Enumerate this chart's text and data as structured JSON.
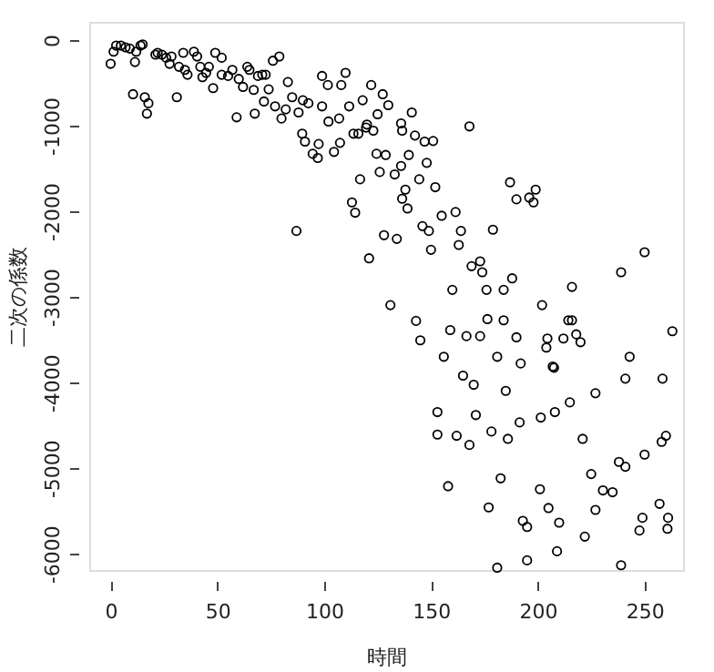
{
  "chart_data": {
    "type": "scatter",
    "xlabel": "時間",
    "ylabel": "二次の係数",
    "xlim": [
      -10,
      268
    ],
    "ylim": [
      -6190,
      213
    ],
    "xticks": [
      0,
      50,
      100,
      150,
      200,
      250
    ],
    "yticks": [
      -6000,
      -5000,
      -4000,
      -3000,
      -2000,
      -1000,
      0
    ],
    "grid": false,
    "marker": "circle",
    "series": [
      {
        "color": "#000000",
        "x": [
          0,
          1.4,
          2.6,
          4.8,
          7,
          9,
          12,
          14,
          15,
          10.5,
          11.4,
          16,
          17.7,
          17,
          21,
          22,
          24,
          26,
          28.5,
          27.6,
          31,
          32,
          34,
          34.8,
          36,
          39,
          40.5,
          42,
          43,
          44.7,
          46,
          49,
          52,
          48,
          52,
          55,
          57,
          59,
          60,
          62,
          64,
          65,
          67.5,
          67,
          69,
          71,
          72.6,
          74,
          71.8,
          76,
          79,
          77,
          80,
          82,
          83,
          85,
          87,
          88,
          90,
          89.7,
          91,
          92.6,
          94.6,
          97,
          97.4,
          99,
          99,
          101.7,
          102,
          104.6,
          107,
          107.4,
          108,
          110,
          111.7,
          113,
          114.5,
          113.7,
          116,
          116.8,
          118,
          119.6,
          121,
          122,
          123,
          124.5,
          126,
          127.4,
          128,
          128.8,
          130,
          125,
          120,
          136,
          141,
          136.5,
          142.5,
          147,
          151,
          139.6,
          133,
          136,
          148,
          168,
          144.5,
          152,
          138,
          136.5,
          139,
          155,
          161.5,
          146,
          149,
          164,
          179,
          134,
          150,
          163,
          187,
          190,
          196,
          199,
          198,
          169,
          173,
          174,
          188,
          160,
          176,
          184,
          216,
          239,
          250,
          131,
          202,
          143,
          145,
          159,
          166.6,
          173,
          176.4,
          184,
          190,
          204.5,
          204,
          212,
          214.3,
          216,
          218,
          220,
          263,
          156,
          181,
          192,
          207,
          207.6,
          243,
          241,
          258.4,
          165,
          170,
          185,
          227,
          215,
          153,
          171,
          191.5,
          201.4,
          208,
          153,
          162,
          168,
          178.3,
          186,
          221,
          260,
          258,
          250,
          238,
          241,
          225,
          158,
          182.6,
          201,
          230.5,
          235,
          205,
          227,
          257,
          177,
          193,
          195,
          210,
          249,
          261,
          260.7,
          247.6,
          222,
          209,
          195,
          181,
          239
        ],
        "values": [
          -277,
          -135,
          -64,
          -64,
          -85,
          -99,
          -135,
          -64,
          -50,
          -632,
          -256,
          -667,
          -738,
          -859,
          -170,
          -149,
          -170,
          -206,
          -192,
          -277,
          -667,
          -312,
          -149,
          -348,
          -405,
          -135,
          -192,
          -312,
          -433,
          -383,
          -312,
          -149,
          -206,
          -561,
          -405,
          -419,
          -348,
          -902,
          -454,
          -547,
          -312,
          -348,
          -859,
          -582,
          -419,
          -405,
          -405,
          -575,
          -717,
          -241,
          -192,
          -774,
          -916,
          -809,
          -490,
          -667,
          -2229,
          -845,
          -703,
          -1093,
          -1186,
          -738,
          -1328,
          -1377,
          -1214,
          -419,
          -774,
          -525,
          -951,
          -1306,
          -916,
          -1200,
          -525,
          -383,
          -774,
          -1896,
          -2016,
          -1093,
          -1093,
          -1626,
          -703,
          -1022,
          -2549,
          -525,
          -1058,
          -1328,
          -1541,
          -632,
          -2279,
          -1342,
          -760,
          -866,
          -987,
          -973,
          -845,
          -1058,
          -1115,
          -1186,
          -1179,
          -1342,
          -1569,
          -1470,
          -1434,
          -1008,
          -1626,
          -1718,
          -1747,
          -1853,
          -1967,
          -2052,
          -2009,
          -2173,
          -2229,
          -2229,
          -2215,
          -2322,
          -2450,
          -2393,
          -1661,
          -1860,
          -1839,
          -1747,
          -1896,
          -2641,
          -2584,
          -2712,
          -2783,
          -2918,
          -2918,
          -2918,
          -2883,
          -2712,
          -2478,
          -3096,
          -3096,
          -3280,
          -3507,
          -3387,
          -3458,
          -3458,
          -3259,
          -3273,
          -3472,
          -3486,
          -3592,
          -3486,
          -3273,
          -3273,
          -3437,
          -3529,
          -3401,
          -3699,
          -3699,
          -3777,
          -3813,
          -3827,
          -3699,
          -3955,
          -3955,
          -3919,
          -4026,
          -4097,
          -4125,
          -4232,
          -4345,
          -4380,
          -4466,
          -4409,
          -4345,
          -4608,
          -4622,
          -4729,
          -4572,
          -4658,
          -4658,
          -4622,
          -4693,
          -4842,
          -4927,
          -4984,
          -5069,
          -5211,
          -5119,
          -5246,
          -5260,
          -5281,
          -5466,
          -5488,
          -5417,
          -5459,
          -5616,
          -5687,
          -5637,
          -5580,
          -5580,
          -5708,
          -5729,
          -5800,
          -5971,
          -6077,
          -6163,
          -6134
        ]
      }
    ]
  }
}
